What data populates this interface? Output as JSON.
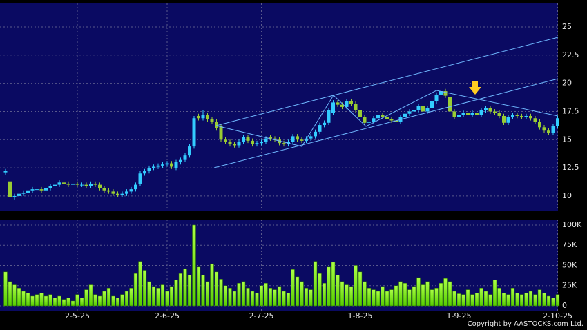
{
  "chart_data": [
    {
      "type": "candlestick",
      "up_color": "#33ccff",
      "down_color": "#99cc33",
      "ylim": [
        8.71,
        27.08
      ],
      "yticks": [
        10,
        12.5,
        15,
        17.5,
        20,
        22.5,
        25
      ],
      "grid": true,
      "open": [
        12.1,
        11.3,
        9.9,
        10.0,
        10.2,
        10.3,
        10.5,
        10.6,
        10.6,
        10.5,
        10.7,
        10.9,
        11.0,
        11.2,
        11.1,
        11.0,
        11.1,
        11.0,
        11.0,
        10.9,
        11.1,
        11.0,
        10.7,
        10.5,
        10.4,
        10.2,
        10.1,
        10.2,
        10.4,
        10.6,
        11.1,
        12.0,
        12.2,
        12.5,
        12.6,
        12.7,
        12.8,
        12.9,
        12.5,
        13.0,
        13.2,
        13.6,
        14.4,
        17.1,
        16.9,
        17.2,
        16.8,
        16.6,
        16.2,
        15.0,
        14.8,
        14.6,
        14.5,
        14.8,
        15.2,
        14.9,
        14.6,
        14.7,
        14.8,
        15.2,
        15.1,
        15.0,
        14.7,
        14.6,
        14.8,
        15.3,
        15.0,
        14.9,
        15.1,
        15.3,
        15.7,
        16.3,
        16.5,
        17.4,
        18.3,
        18.1,
        17.9,
        18.4,
        18.2,
        17.6,
        17.0,
        16.5,
        16.6,
        16.9,
        17.2,
        17.0,
        16.8,
        16.7,
        16.6,
        17.0,
        17.3,
        17.5,
        17.6,
        18.0,
        17.5,
        17.8,
        18.4,
        19.0,
        19.3,
        18.8,
        17.5,
        17.0,
        17.2,
        17.4,
        17.2,
        17.4,
        17.2,
        17.6,
        17.8,
        17.5,
        17.4,
        17.1,
        16.5,
        17.0,
        17.2,
        17.1,
        17.0,
        17.1,
        16.9,
        16.6,
        16.1,
        15.8,
        15.6,
        16.2
      ],
      "high": [
        12.4,
        11.5,
        10.2,
        10.4,
        10.5,
        10.7,
        10.8,
        10.8,
        10.8,
        10.9,
        11.1,
        11.2,
        11.4,
        11.4,
        11.3,
        11.3,
        11.3,
        11.2,
        11.2,
        11.3,
        11.3,
        11.2,
        10.9,
        10.7,
        10.6,
        10.4,
        10.4,
        10.6,
        10.8,
        11.2,
        12.2,
        12.4,
        12.7,
        12.8,
        12.9,
        13.0,
        13.1,
        13.1,
        13.2,
        13.4,
        13.8,
        14.6,
        17.1,
        17.3,
        17.6,
        17.4,
        17.0,
        16.8,
        16.4,
        15.2,
        15.0,
        14.8,
        15.0,
        15.4,
        15.4,
        15.1,
        14.9,
        15.0,
        15.3,
        15.4,
        15.3,
        15.2,
        14.9,
        15.0,
        15.5,
        15.5,
        15.2,
        15.3,
        15.5,
        15.9,
        16.5,
        16.7,
        17.8,
        18.5,
        18.5,
        18.3,
        18.6,
        18.6,
        18.4,
        17.8,
        17.2,
        16.8,
        17.1,
        17.4,
        17.4,
        17.2,
        17.0,
        16.9,
        17.2,
        17.5,
        17.7,
        17.8,
        18.2,
        18.2,
        18.0,
        18.6,
        19.2,
        19.5,
        19.5,
        19.0,
        17.7,
        17.4,
        17.6,
        17.6,
        17.6,
        17.6,
        17.8,
        18.0,
        18.0,
        17.7,
        17.6,
        17.3,
        17.2,
        17.4,
        17.4,
        17.3,
        17.3,
        17.3,
        17.1,
        16.8,
        16.3,
        16.0,
        16.4,
        17.1
      ],
      "low": [
        11.9,
        9.7,
        9.7,
        9.8,
        10.0,
        10.1,
        10.3,
        10.4,
        10.3,
        10.3,
        10.5,
        10.7,
        10.8,
        10.9,
        10.8,
        10.8,
        10.8,
        10.8,
        10.7,
        10.7,
        10.8,
        10.5,
        10.3,
        10.2,
        10.0,
        9.9,
        9.9,
        10.0,
        10.2,
        10.4,
        10.9,
        11.8,
        12.0,
        12.3,
        12.4,
        12.5,
        12.6,
        12.4,
        12.3,
        12.8,
        13.0,
        13.4,
        14.2,
        16.7,
        16.7,
        16.6,
        16.4,
        15.8,
        14.8,
        14.6,
        14.4,
        14.3,
        14.3,
        14.6,
        14.7,
        14.4,
        14.4,
        14.5,
        14.6,
        14.9,
        14.8,
        14.5,
        14.4,
        14.4,
        14.6,
        14.8,
        14.7,
        14.7,
        14.9,
        15.1,
        15.5,
        16.1,
        16.3,
        17.2,
        17.9,
        17.7,
        17.7,
        18.0,
        17.4,
        16.8,
        16.3,
        16.3,
        16.4,
        16.7,
        16.8,
        16.6,
        16.5,
        16.4,
        16.4,
        16.8,
        17.1,
        17.3,
        17.4,
        17.3,
        17.3,
        17.6,
        18.2,
        18.8,
        18.7,
        17.3,
        16.8,
        16.8,
        17.0,
        17.0,
        17.0,
        17.0,
        17.0,
        17.4,
        17.3,
        17.2,
        16.9,
        16.3,
        16.3,
        16.8,
        16.9,
        16.8,
        16.8,
        16.7,
        16.4,
        15.9,
        15.6,
        15.4,
        15.4,
        16.0
      ],
      "close": [
        12.2,
        9.9,
        10.0,
        10.2,
        10.3,
        10.5,
        10.6,
        10.6,
        10.5,
        10.7,
        10.9,
        11.0,
        11.2,
        11.1,
        11.0,
        11.1,
        11.0,
        11.0,
        10.9,
        11.1,
        11.0,
        10.7,
        10.5,
        10.4,
        10.2,
        10.1,
        10.2,
        10.4,
        10.6,
        11.0,
        12.0,
        12.2,
        12.5,
        12.6,
        12.7,
        12.8,
        12.9,
        12.6,
        13.0,
        13.2,
        13.6,
        14.4,
        16.9,
        16.9,
        17.2,
        16.8,
        16.6,
        16.0,
        15.0,
        14.8,
        14.6,
        14.5,
        14.8,
        15.2,
        14.9,
        14.6,
        14.7,
        14.8,
        15.1,
        15.1,
        15.0,
        14.7,
        14.6,
        14.8,
        15.3,
        15.0,
        14.9,
        15.1,
        15.3,
        15.7,
        16.3,
        16.5,
        17.6,
        18.3,
        18.1,
        17.9,
        18.4,
        18.2,
        17.6,
        17.0,
        16.5,
        16.6,
        16.9,
        17.2,
        17.0,
        16.8,
        16.7,
        16.6,
        17.0,
        17.3,
        17.5,
        17.6,
        18.0,
        17.5,
        17.8,
        18.4,
        19.0,
        19.3,
        18.9,
        17.5,
        17.0,
        17.2,
        17.4,
        17.2,
        17.4,
        17.2,
        17.6,
        17.8,
        17.5,
        17.4,
        17.1,
        16.5,
        17.0,
        17.2,
        17.1,
        17.0,
        17.1,
        16.9,
        16.6,
        16.1,
        15.8,
        15.6,
        16.2,
        16.9
      ]
    },
    {
      "type": "bar",
      "color": "#88ff22",
      "ylim": [
        -6000,
        106800
      ],
      "yticks": [
        0,
        {
          "value": 25000,
          "label": "25K"
        },
        {
          "value": 50000,
          "label": "50K"
        },
        {
          "value": 75000,
          "label": "75K"
        },
        {
          "value": 100000,
          "label": "100K"
        }
      ],
      "grid": true,
      "categories": [
        null,
        null,
        null,
        null,
        null,
        null,
        null,
        null,
        null,
        null,
        null,
        null,
        null,
        null,
        null,
        null,
        "2-5-25",
        null,
        null,
        null,
        null,
        null,
        null,
        null,
        null,
        null,
        null,
        null,
        null,
        null,
        null,
        null,
        null,
        null,
        null,
        null,
        "2-6-25",
        null,
        null,
        null,
        null,
        null,
        null,
        null,
        null,
        null,
        null,
        null,
        null,
        null,
        null,
        null,
        null,
        null,
        null,
        null,
        null,
        "2-7-25",
        null,
        null,
        null,
        null,
        null,
        null,
        null,
        null,
        null,
        null,
        null,
        null,
        null,
        null,
        null,
        null,
        null,
        null,
        null,
        null,
        null,
        "1-8-25",
        null,
        null,
        null,
        null,
        null,
        null,
        null,
        null,
        null,
        null,
        null,
        null,
        null,
        null,
        null,
        null,
        null,
        null,
        null,
        null,
        null,
        "1-9-25",
        null,
        null,
        null,
        null,
        null,
        null,
        null,
        null,
        null,
        null,
        null,
        null,
        null,
        null,
        null,
        null,
        null,
        null,
        null,
        null,
        null,
        "2-10-25"
      ],
      "values": [
        42000,
        30000,
        26000,
        22000,
        18000,
        16000,
        12000,
        14000,
        16000,
        12000,
        14000,
        10000,
        12000,
        8000,
        10000,
        6000,
        14000,
        10000,
        20000,
        26000,
        14000,
        12000,
        18000,
        22000,
        12000,
        10000,
        14000,
        18000,
        22000,
        40000,
        55000,
        44000,
        30000,
        24000,
        22000,
        26000,
        18000,
        24000,
        32000,
        40000,
        46000,
        38000,
        100000,
        48000,
        38000,
        30000,
        52000,
        42000,
        33000,
        25000,
        22000,
        18000,
        28000,
        30000,
        22000,
        18000,
        16000,
        25000,
        28000,
        22000,
        20000,
        24000,
        18000,
        16000,
        45000,
        36000,
        30000,
        22000,
        20000,
        55000,
        40000,
        28000,
        48000,
        54000,
        38000,
        30000,
        26000,
        24000,
        50000,
        42000,
        30000,
        22000,
        20000,
        18000,
        24000,
        18000,
        20000,
        25000,
        30000,
        28000,
        20000,
        24000,
        35000,
        26000,
        30000,
        20000,
        22000,
        28000,
        34000,
        30000,
        18000,
        15000,
        14000,
        20000,
        14000,
        16000,
        22000,
        18000,
        14000,
        32000,
        22000,
        16000,
        14000,
        22000,
        16000,
        14000,
        16000,
        18000,
        14000,
        20000,
        16000,
        12000,
        10000,
        14000
      ]
    }
  ],
  "footer": "Copyright by AASTOCKS.com Ltd."
}
